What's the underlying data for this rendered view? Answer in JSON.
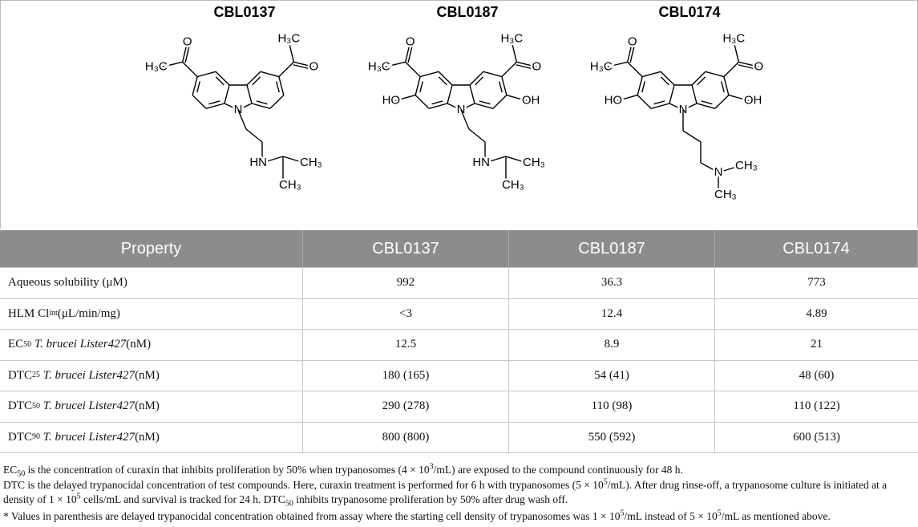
{
  "structures": [
    {
      "name": "CBL0137",
      "acetyls": [
        [
          "H₃C",
          "O"
        ],
        [
          "H₃C",
          "O"
        ]
      ],
      "amine": [
        "N",
        "HN",
        "CH₃",
        "CH₃"
      ]
    },
    {
      "name": "CBL0187",
      "acetyls": [
        [
          "H₃C",
          "O"
        ],
        [
          "H₃C",
          "O"
        ]
      ],
      "hydroxyls": [
        "HO",
        "OH"
      ],
      "amine": [
        "N",
        "HN",
        "CH₃",
        "CH₃"
      ]
    },
    {
      "name": "CBL0174",
      "acetyls": [
        [
          "H₃C",
          "O"
        ],
        [
          "H₃C",
          "O"
        ]
      ],
      "hydroxyls": [
        "HO",
        "OH"
      ],
      "amine": [
        "N",
        "N",
        "CH₃",
        "CH₃"
      ]
    }
  ],
  "table": {
    "header": [
      "Property",
      "CBL0137",
      "CBL0187",
      "CBL0174"
    ],
    "rows": [
      {
        "label": [
          "Aqueous solubility (μM)"
        ],
        "values": [
          "992",
          "36.3",
          "773"
        ]
      },
      {
        "label": [
          "HLM Cl",
          "int",
          " (μL/min/mg)"
        ],
        "values": [
          "<3",
          "12.4",
          "4.89"
        ]
      },
      {
        "label": [
          "EC",
          "50",
          " T. brucei Lister427",
          " (nM)"
        ],
        "values": [
          "12.5",
          "8.9",
          "21"
        ]
      },
      {
        "label": [
          "DTC",
          "25",
          " T. brucei Lister427",
          " (nM)"
        ],
        "values": [
          "180 (165)",
          "54 (41)",
          "48 (60)"
        ]
      },
      {
        "label": [
          "DTC",
          "50",
          " T. brucei Lister427",
          " (nM)"
        ],
        "values": [
          "290 (278)",
          "110 (98)",
          "110 (122)"
        ]
      },
      {
        "label": [
          "DTC",
          "90",
          " T. brucei Lister427",
          " (nM)"
        ],
        "values": [
          "800 (800)",
          "550 (592)",
          "600 (513)"
        ]
      }
    ]
  },
  "footnotes": [
    [
      "EC",
      "50",
      " is the concentration of curaxin that inhibits proliferation by 50% when trypanosomes (4 × 10",
      "3",
      "/mL) are exposed to the compound continuously for 48 h."
    ],
    [
      "DTC is the delayed trypanocidal concentration of test compounds. Here, curaxin treatment is performed for 6 h with trypanosomes (5 × 10",
      "5",
      "/mL). After drug rinse-off, a trypanosome culture is initiated at a density of 1 × 10",
      "5",
      " cells/mL and survival is tracked for 24 h. DTC",
      "50",
      " inhibits trypanosome proliferation by 50% after drug wash off."
    ],
    [
      "* Values in parenthesis are delayed trypanocidal concentration obtained from assay where the starting cell density of trypanosomes was 1 × 10",
      "5",
      "/mL instead of 5 × 10",
      "5",
      "/mL as mentioned above."
    ]
  ]
}
